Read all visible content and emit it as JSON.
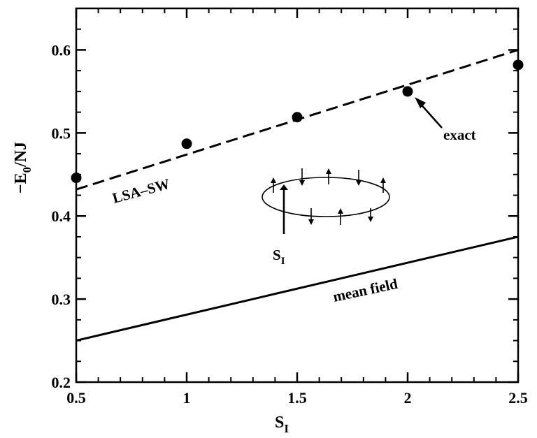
{
  "chart_data": {
    "type": "line",
    "xlabel": {
      "main": "S",
      "sub": "I"
    },
    "ylabel": {
      "main": "−E",
      "sub": "0",
      "tail": "/NJ"
    },
    "xlim": [
      0.5,
      2.5
    ],
    "ylim": [
      0.2,
      0.65
    ],
    "x_ticks": [
      0.5,
      1,
      1.5,
      2,
      2.5
    ],
    "x_tick_labels": [
      "0.5",
      "1",
      "1.5",
      "2",
      "2.5"
    ],
    "y_ticks": [
      0.2,
      0.3,
      0.4,
      0.5,
      0.6
    ],
    "y_tick_labels": [
      "0.2",
      "0.3",
      "0.4",
      "0.5",
      "0.6"
    ],
    "grid": false,
    "series": [
      {
        "name": "exact",
        "style": "markers",
        "color": "#000000",
        "x": [
          0.5,
          1,
          1.5,
          2,
          2.5
        ],
        "y": [
          0.446,
          0.487,
          0.519,
          0.55,
          0.582
        ]
      },
      {
        "name": "LSA–SW",
        "style": "dashed",
        "color": "#000000",
        "x": [
          0.5,
          2.5
        ],
        "y": [
          0.432,
          0.6
        ]
      },
      {
        "name": "mean field",
        "style": "solid",
        "color": "#000000",
        "x": [
          0.5,
          2.5
        ],
        "y": [
          0.25,
          0.375
        ]
      }
    ],
    "annotations": {
      "exact": "exact",
      "lsa": "LSA–SW",
      "mean_field": "mean field",
      "spin": {
        "main": "S",
        "sub": "I"
      }
    }
  }
}
